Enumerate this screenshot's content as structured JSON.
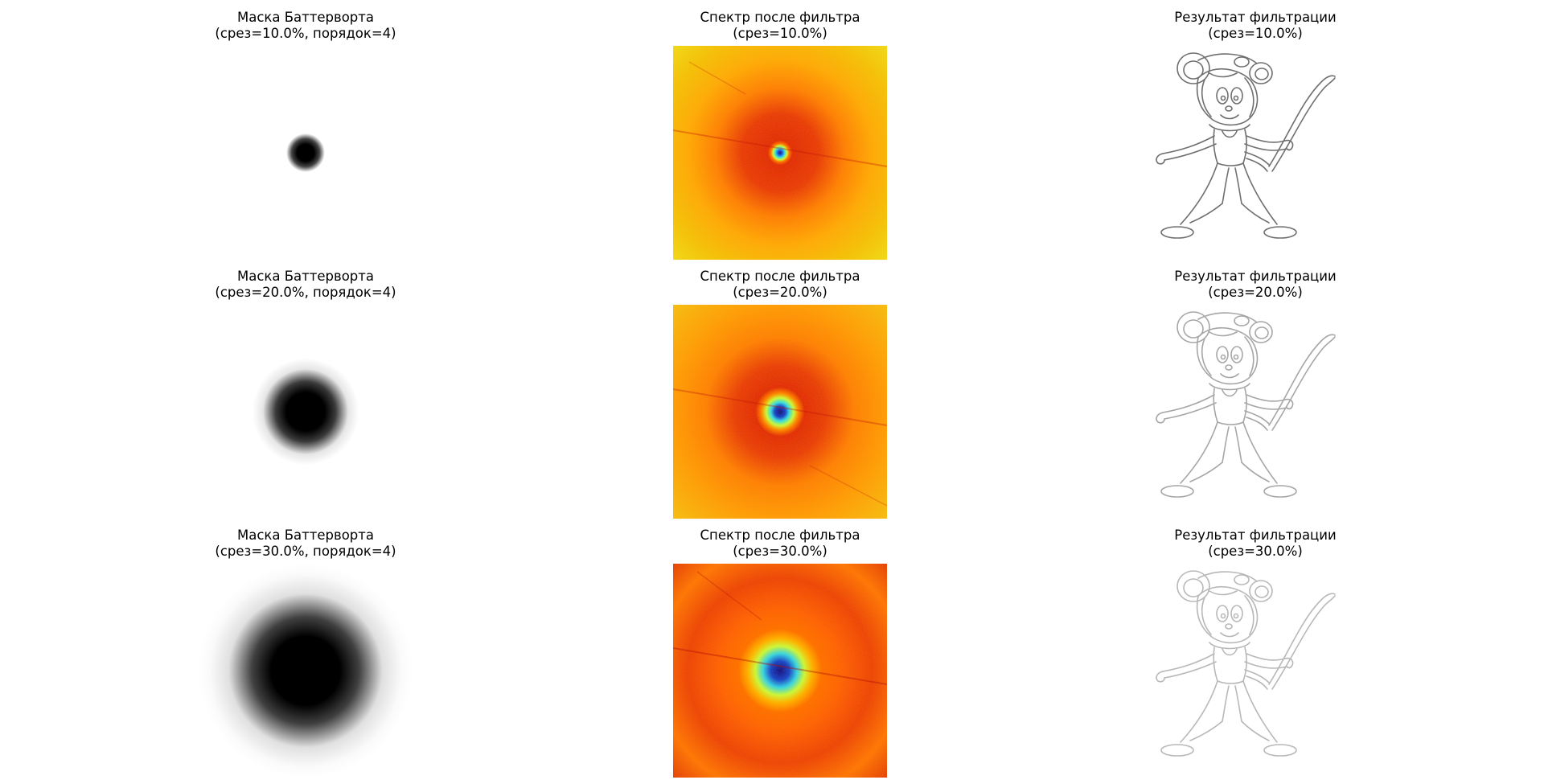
{
  "figure": {
    "rows": [
      {
        "mask_title": [
          "Маска Баттерворта",
          "(срез=10.0%, порядок=4)"
        ],
        "spectrum_title": [
          "Спектр после фильтра",
          "(срез=10.0%)"
        ],
        "result_title": [
          "Результат фильтрации",
          "(срез=10.0%)"
        ],
        "cutoff_percent": 10.0,
        "order": 4,
        "result_line_color": "#6f6f6f"
      },
      {
        "mask_title": [
          "Маска Баттерворта",
          "(срез=20.0%, порядок=4)"
        ],
        "spectrum_title": [
          "Спектр после фильтра",
          "(срез=20.0%)"
        ],
        "result_title": [
          "Результат фильтрации",
          "(срез=20.0%)"
        ],
        "cutoff_percent": 20.0,
        "order": 4,
        "result_line_color": "#a6a6a6"
      },
      {
        "mask_title": [
          "Маска Баттерворта",
          "(срез=30.0%, порядок=4)"
        ],
        "spectrum_title": [
          "Спектр после фильтра",
          "(срез=30.0%)"
        ],
        "result_title": [
          "Результат фильтрации",
          "(срез=30.0%)"
        ],
        "cutoff_percent": 30.0,
        "order": 4,
        "result_line_color": "#b8b8b8"
      }
    ],
    "colors": {
      "mask_center": "#000000",
      "mask_background": "#ffffff",
      "spectrum_colormap": [
        "#00008f",
        "#0050ff",
        "#20e0ff",
        "#c8ff40",
        "#ffd000",
        "#ff6a00",
        "#e0200a"
      ],
      "spectrum_outer": "#f4c20c"
    }
  }
}
